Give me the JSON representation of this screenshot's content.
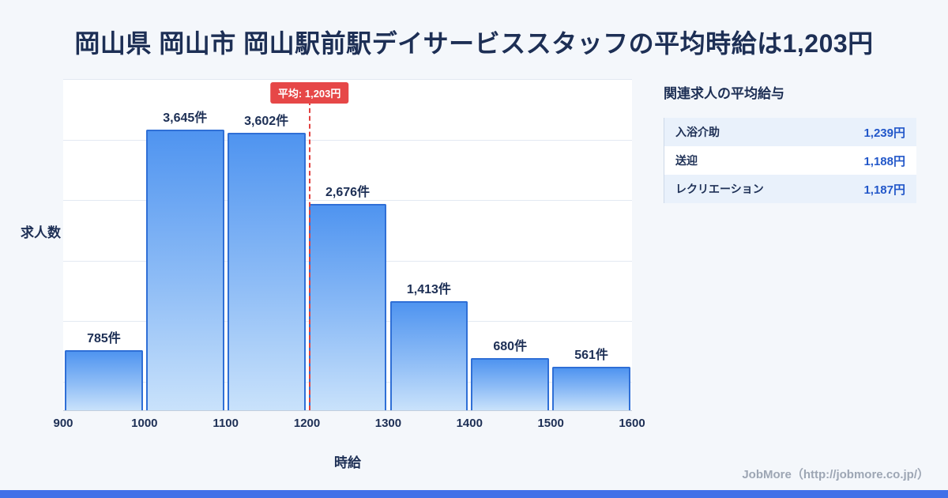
{
  "title": "岡山県 岡山市 岡山駅前駅デイサービススタッフの平均時給は1,203円",
  "chart_data": {
    "type": "bar",
    "title": "岡山県 岡山市 岡山駅前駅デイサービススタッフの平均時給は1,203円",
    "xlabel": "時給",
    "ylabel": "求人数",
    "bin_edges": [
      900,
      1000,
      1100,
      1200,
      1300,
      1400,
      1500,
      1600
    ],
    "x_ticks": [
      "900",
      "1000",
      "1100",
      "1200",
      "1300",
      "1400",
      "1500",
      "1600"
    ],
    "values": [
      785,
      3645,
      3602,
      2676,
      1413,
      680,
      561
    ],
    "bar_labels": [
      "785件",
      "3,645件",
      "3,602件",
      "2,676件",
      "1,413件",
      "680件",
      "561件"
    ],
    "ylim": [
      0,
      4300
    ],
    "grid": true,
    "legend": false,
    "average": {
      "value": 1203,
      "label": "平均: 1,203円"
    },
    "colors": {
      "bar_top": "#4f94f0",
      "bar_bottom": "#c9e2fb",
      "bar_border": "#2f6fd6",
      "average_line": "#e2403f"
    }
  },
  "panel": {
    "title": "関連求人の平均給与",
    "rows": [
      {
        "label": "入浴介助",
        "value": "1,239円"
      },
      {
        "label": "送迎",
        "value": "1,188円"
      },
      {
        "label": "レクリエーション",
        "value": "1,187円"
      }
    ]
  },
  "footer": {
    "text": "JobMore（http://jobmore.co.jp/）"
  },
  "colors": {
    "background": "#f4f7fb",
    "accent_bar": "#4170e8",
    "title_text": "#1d2f55",
    "value_text": "#2257c9",
    "badge_background": "#e64747"
  }
}
